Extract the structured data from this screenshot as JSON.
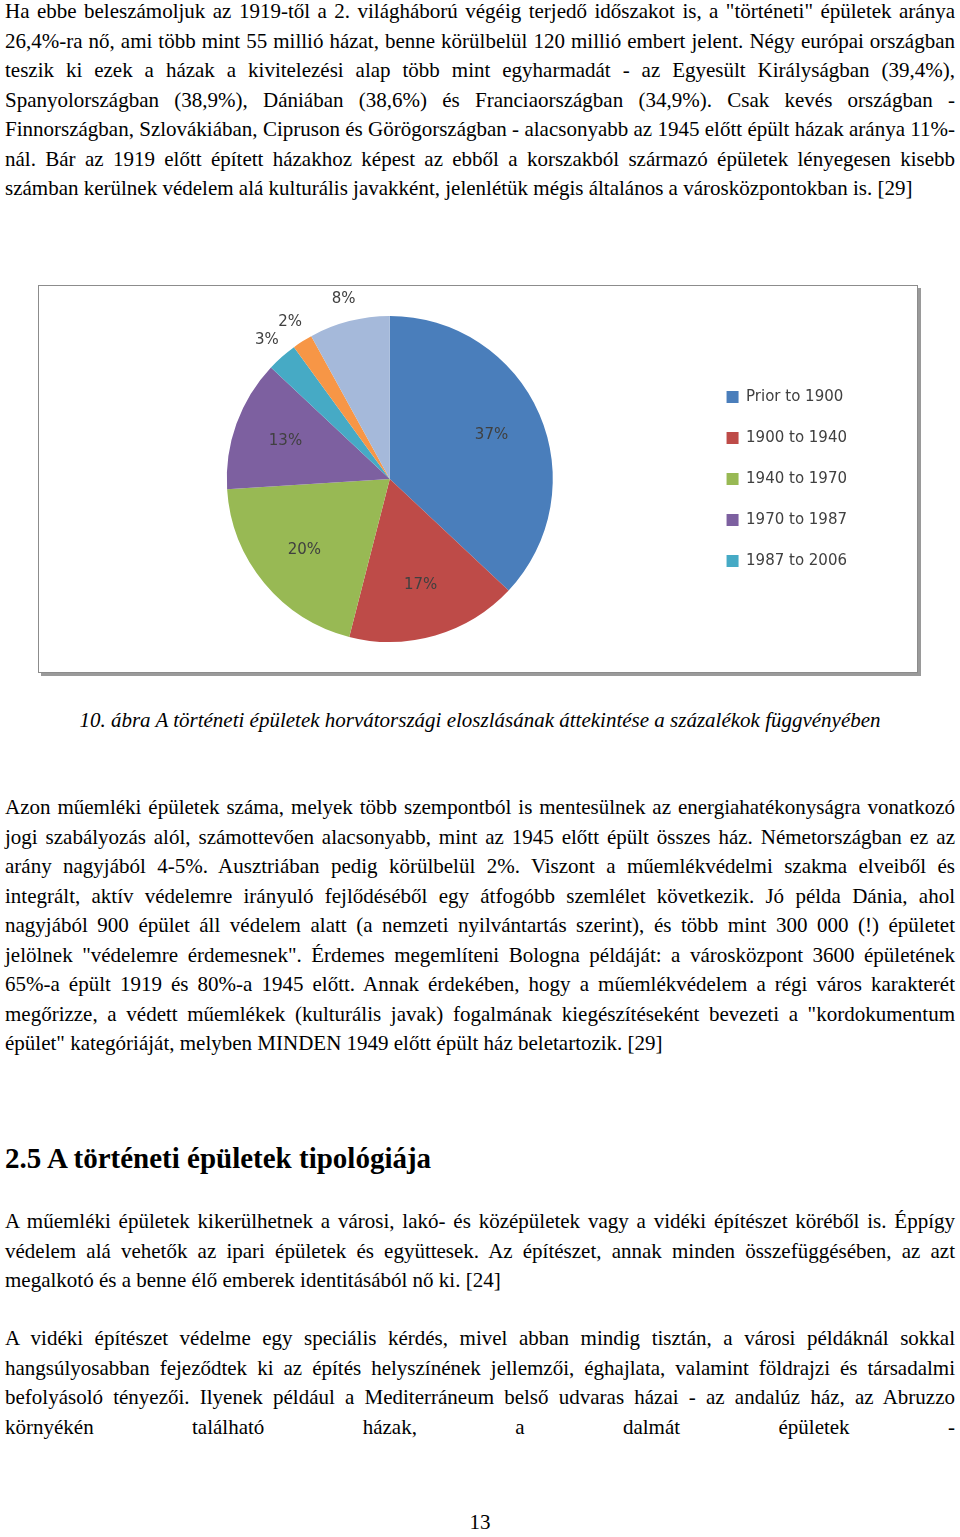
{
  "paragraphs_top": [
    "Ha ebbe beleszámoljuk az 1919-től a 2. világháború végéig terjedő időszakot is, a \"történeti\" épületek aránya 26,4%-ra nő, ami több mint 55 millió házat, benne körülbelül 120 millió embert jelent. Négy európai országban teszik ki ezek a házak a kivitelezési alap több mint egyharmadát - az Egyesült Királyságban (39,4%), Spanyolországban (38,9%), Dániában (38,6%) és Franciaországban (34,9%). Csak kevés országban - Finnországban, Szlovákiában, Cipruson és Görögországban - alacsonyabb az 1945 előtt épült házak aránya 11%-nál. Bár az 1919 előtt épített házakhoz képest az ebből a korszakból származó épületek lényegesen kisebb számban kerülnek védelem alá kulturális javakként, jelenlétük mégis általános a városközpontokban is. [29]"
  ],
  "chart_data": {
    "type": "pie",
    "categories": [
      "Prior to 1900",
      "1900 to 1940",
      "1940 to 1970",
      "1970 to 1987",
      "1987 to 2006",
      null,
      null
    ],
    "values": [
      37,
      17,
      20,
      13,
      3,
      2,
      8
    ],
    "value_labels": [
      "37%",
      "17%",
      "20%",
      "13%",
      "3%",
      "2%",
      "8%"
    ],
    "colors": [
      "#4a7ebb",
      "#be4b48",
      "#98b954",
      "#7d60a0",
      "#46aac5",
      "#f79646",
      "#a5b9da"
    ],
    "legend": "right",
    "data_labels": true
  },
  "caption": "10. ábra A történeti épületek horvátországi eloszlásának áttekintése a százalékok függvényében",
  "paragraphs_middle": [
    "Azon műemléki épületek száma, melyek több szempontból is mentesülnek az energiahatékonyságra vonatkozó jogi szabályozás alól, számottevően alacsonyabb, mint az 1945 előtt épült összes ház. Németországban ez az arány nagyjából 4-5%. Ausztriában pedig körülbelül 2%. Viszont a műemlékvédelmi szakma elveiből és integrált, aktív védelemre irányuló fejlődéséből egy átfogóbb szemlélet következik. Jó példa Dánia, ahol nagyjából 900 épület áll védelem alatt (a nemzeti nyilvántartás szerint), és több mint 300 000 (!) épületet jelölnek \"védelemre érdemesnek\". Érdemes megemlíteni Bologna példáját: a városközpont 3600 épületének 65%-a épült 1919 és 80%-a 1945 előtt. Annak érdekében, hogy a műemlékvédelem a régi város karakterét megőrizze, a védett műemlékek (kulturális javak) fogalmának kiegészítéseként bevezeti a \"kordokumentum épület\" kategóriáját, melyben MINDEN 1949 előtt épült ház beletartozik. [29]"
  ],
  "heading": "2.5 A történeti épületek tipológiája",
  "paragraphs_bottom": [
    "A műemléki épületek kikerülhetnek a városi, lakó- és középületek vagy a vidéki építészet köréből is. Éppígy védelem alá vehetők az ipari épületek és együttesek. Az építészet, annak minden összefüggésében, az azt megalkotó és a benne élő emberek identitásából nő ki. [24]",
    "A vidéki építészet védelme egy speciális kérdés, mivel abban mindig tisztán, a városi példáknál sokkal hangsúlyosabban fejeződtek ki az építés helyszínének jellemzői, éghajlata, valamint földrajzi és társadalmi befolyásoló tényezői. Ilyenek például a Mediterráneum belső udvaras házai - az andalúz ház, az Abruzzo környékén található házak, a dalmát épületek -"
  ],
  "page_number": "13"
}
